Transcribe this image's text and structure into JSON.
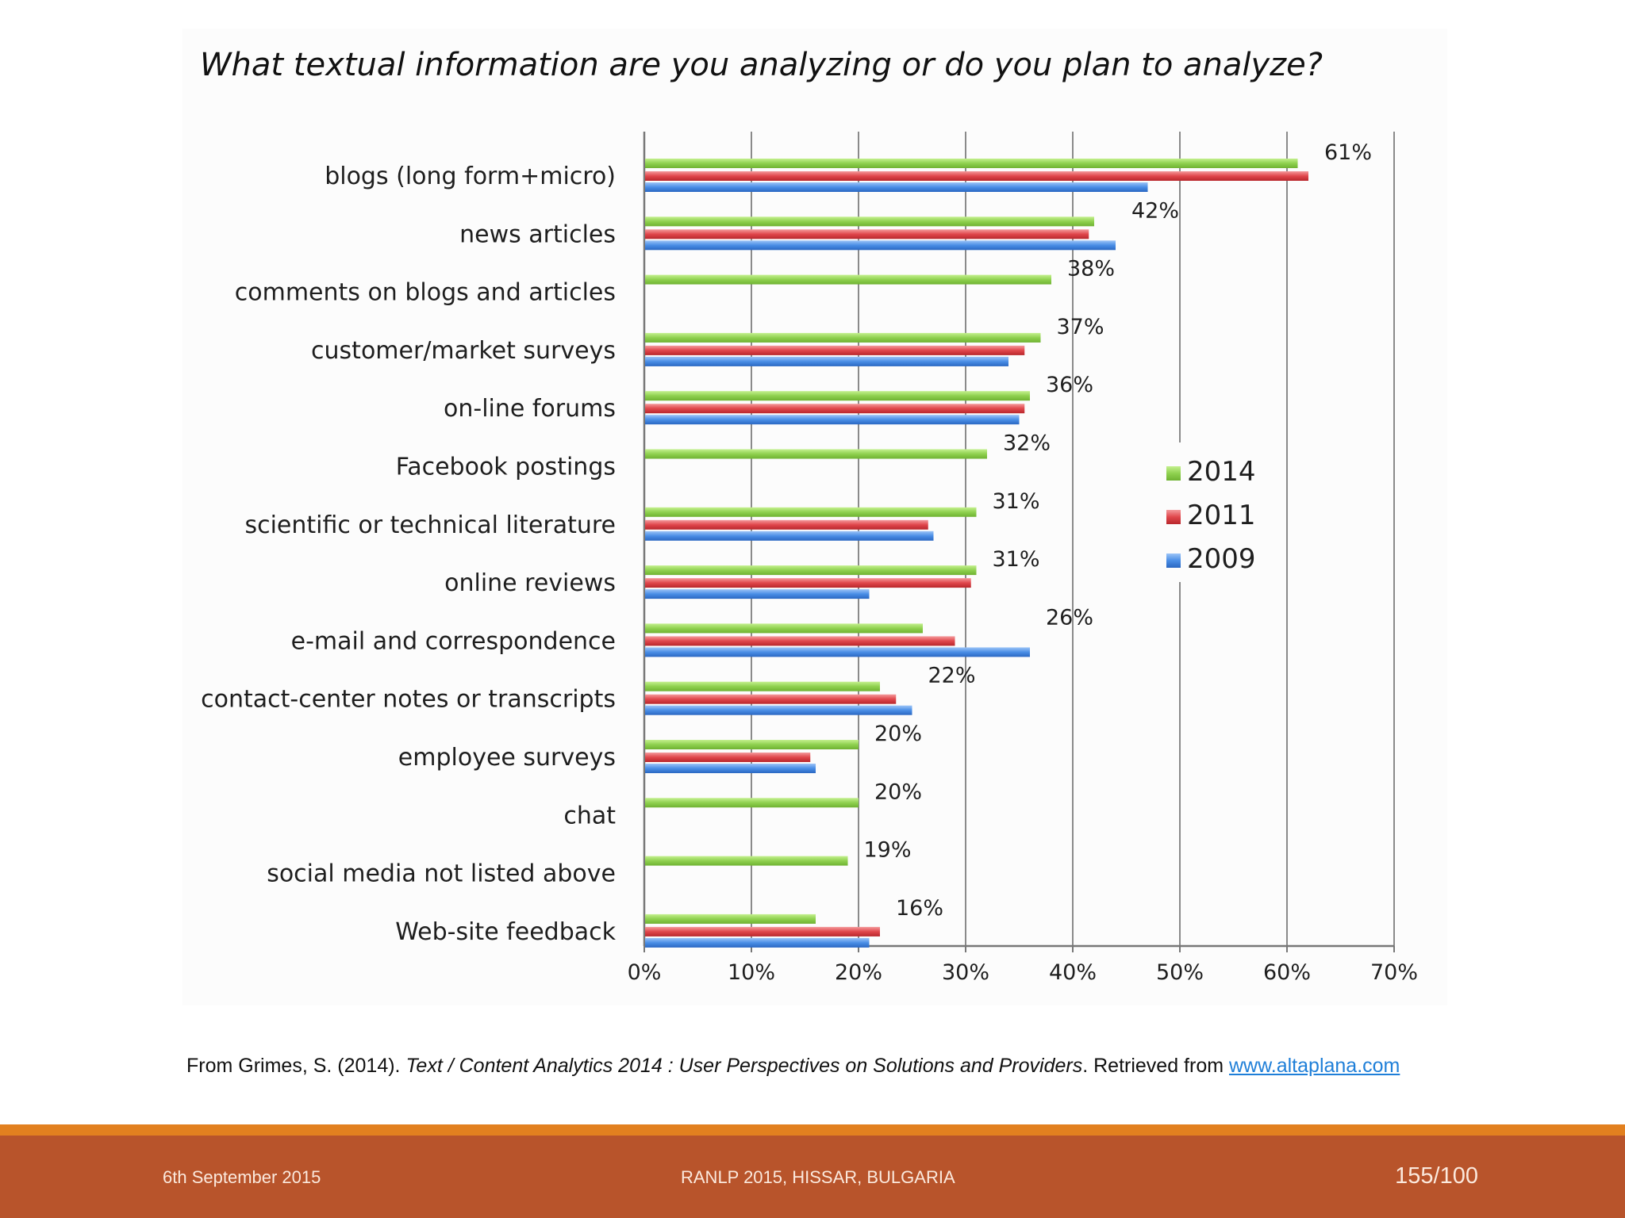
{
  "chart_data": {
    "type": "bar",
    "orientation": "horizontal",
    "title": "What textual information are you analyzing or do you plan to analyze?",
    "categories": [
      "blogs (long form+micro)",
      "news articles",
      "comments on blogs and articles",
      "customer/market surveys",
      "on-line forums",
      "Facebook postings",
      "scientific or technical literature",
      "online reviews",
      "e-mail and correspondence",
      "contact-center notes or transcripts",
      "employee surveys",
      "chat",
      "social media not listed above",
      "Web-site feedback"
    ],
    "series": [
      {
        "name": "2014",
        "color": "#8fd14f",
        "values": [
          61,
          42,
          38,
          37,
          36,
          32,
          31,
          31,
          26,
          22,
          20,
          20,
          19,
          16
        ]
      },
      {
        "name": "2011",
        "color": "#e0474c",
        "values": [
          62,
          41.5,
          null,
          35.5,
          35.5,
          null,
          26.5,
          30.5,
          29,
          23.5,
          15.5,
          null,
          null,
          22
        ]
      },
      {
        "name": "2009",
        "color": "#4a8ee6",
        "values": [
          47,
          44,
          null,
          34,
          35,
          null,
          27,
          21,
          36,
          25,
          16,
          null,
          null,
          21
        ]
      }
    ],
    "data_labels": [
      "61%",
      "42%",
      "38%",
      "37%",
      "36%",
      "32%",
      "31%",
      "31%",
      "26%",
      "22%",
      "20%",
      "20%",
      "19%",
      "16%"
    ],
    "xticks": [
      "0%",
      "10%",
      "20%",
      "30%",
      "40%",
      "50%",
      "60%",
      "70%"
    ],
    "xlim": [
      0,
      70
    ],
    "xlabel": "",
    "ylabel": "",
    "grid": true,
    "legend_position": "right",
    "legend": [
      "2014",
      "2011",
      "2009"
    ]
  },
  "citation": {
    "prefix": "From Grimes, S. (2014). ",
    "title": "Text / Content Analytics 2014 : User Perspectives on Solutions and Providers",
    "suffix": ". Retrieved from ",
    "link_text": "www.altaplana.com"
  },
  "footer": {
    "date": "6th September 2015",
    "conference": "RANLP 2015, HISSAR, BULGARIA",
    "page": "155/100"
  }
}
